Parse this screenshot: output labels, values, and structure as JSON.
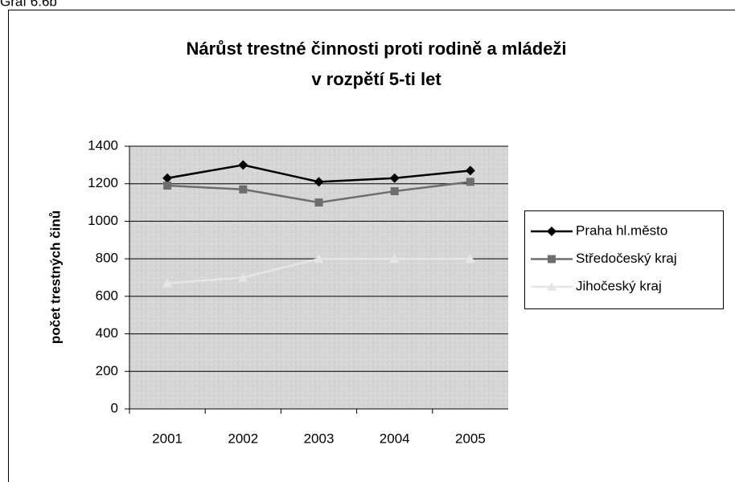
{
  "chart_data": {
    "type": "line",
    "caption": "Graf 6.6b",
    "title": [
      "Nárůst trestné činnosti proti rodině a mládeži",
      "v rozpětí 5-ti let"
    ],
    "y_label": "počet trestných činů",
    "categories": [
      "2001",
      "2002",
      "2003",
      "2004",
      "2005"
    ],
    "series": [
      {
        "name": "Praha hl.město",
        "color": "#000000",
        "marker": "diamond",
        "values": [
          1230,
          1300,
          1210,
          1230,
          1270
        ]
      },
      {
        "name": "Středočeský kraj",
        "color": "#6e6e6e",
        "marker": "square",
        "values": [
          1190,
          1170,
          1100,
          1160,
          1210
        ]
      },
      {
        "name": "Jihočeský kraj",
        "color": "#e6e6e6",
        "marker": "triangle",
        "values": [
          670,
          700,
          800,
          800,
          800
        ]
      }
    ],
    "ylim": [
      0,
      1400
    ],
    "yticks": [
      0,
      200,
      400,
      600,
      800,
      1000,
      1200,
      1400
    ],
    "grid": true,
    "legend": "right"
  }
}
